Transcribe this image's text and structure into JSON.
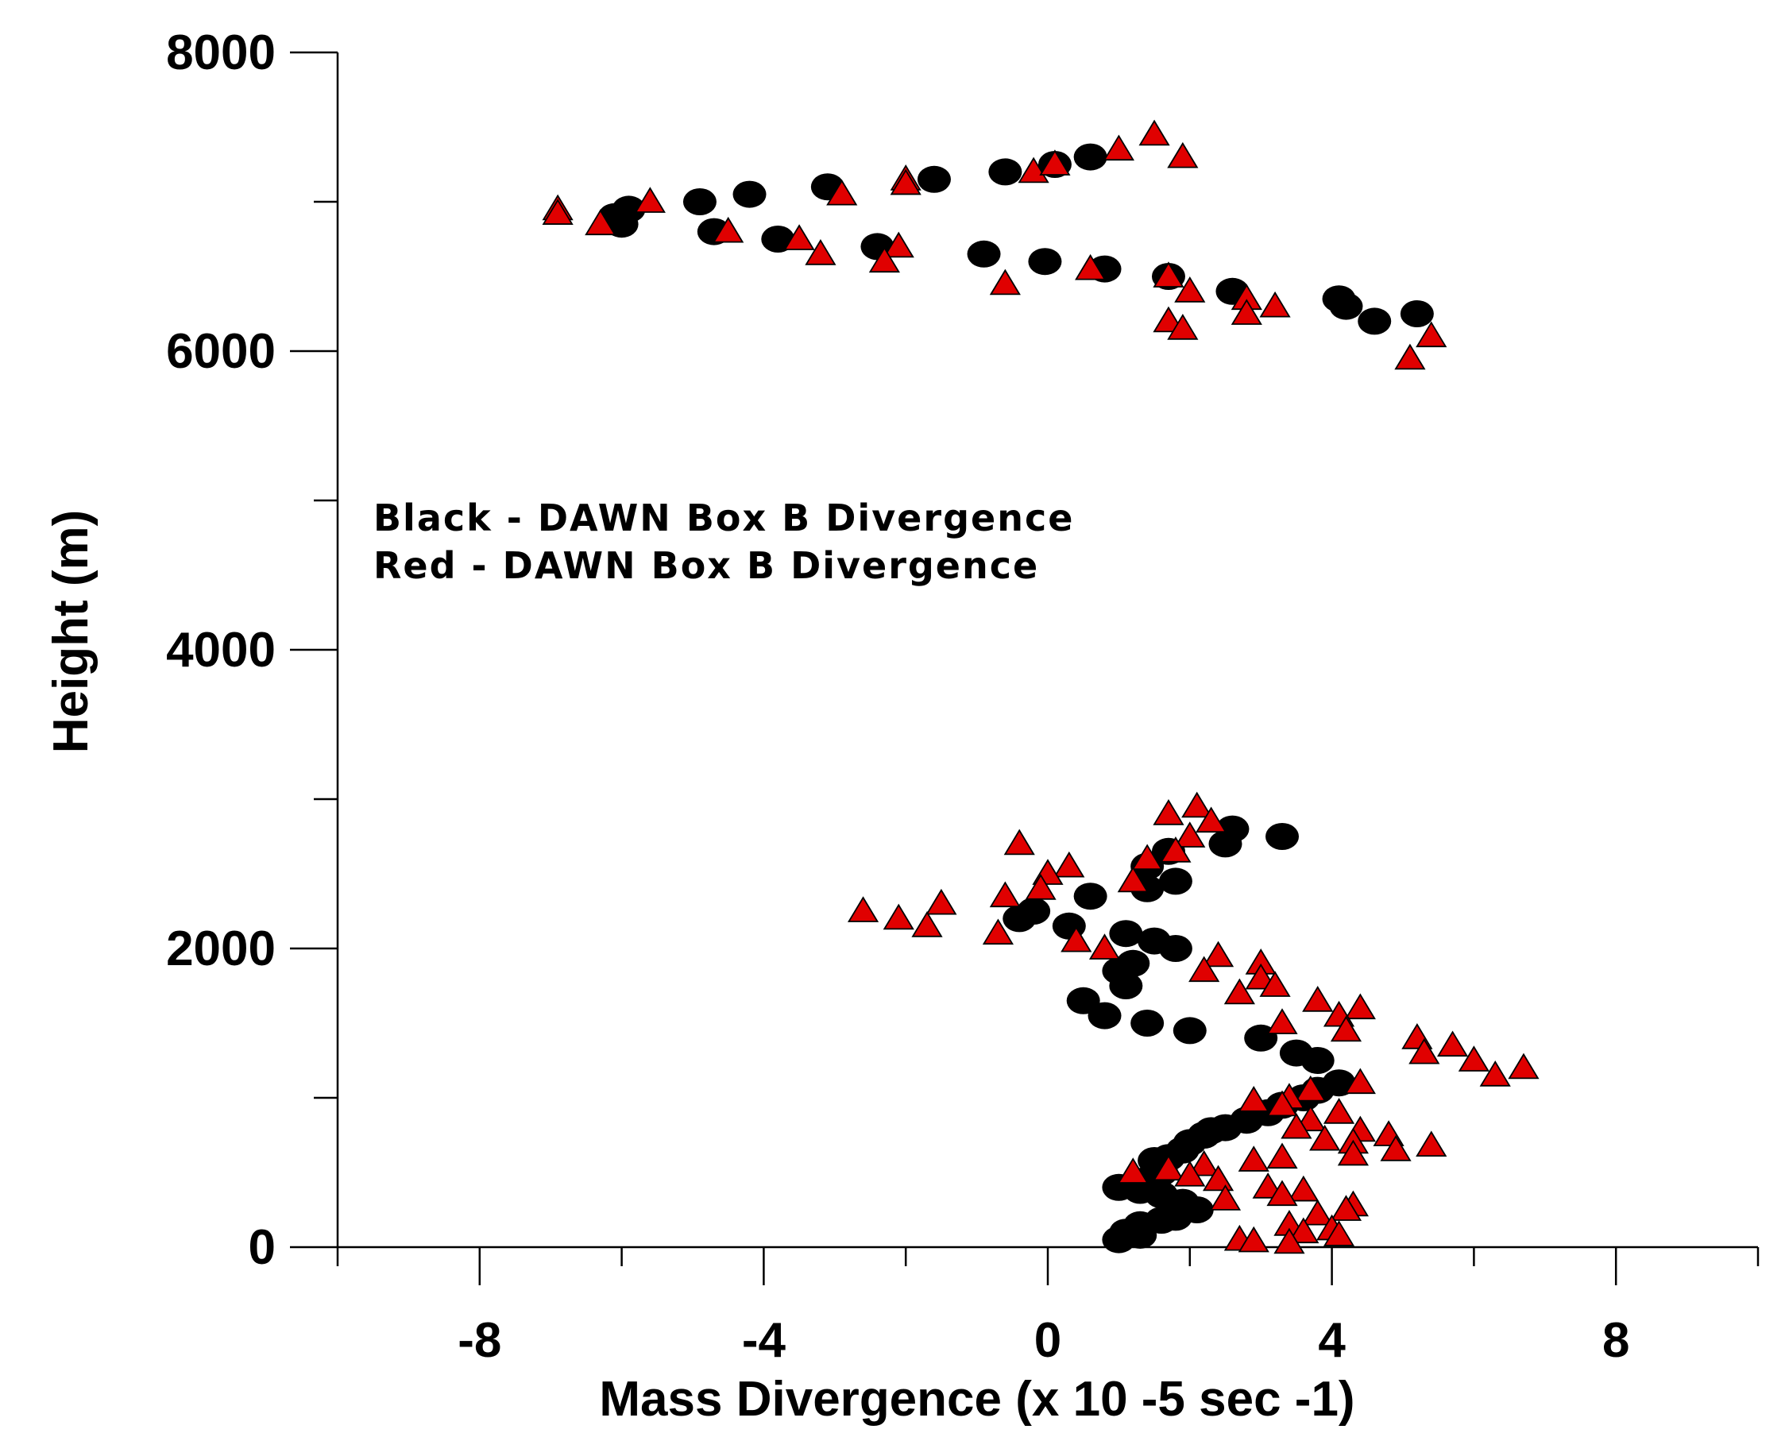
{
  "chart_data": {
    "type": "scatter",
    "xlabel": "Mass Divergence (x 10 -5 sec -1)",
    "ylabel": "Height (m)",
    "xlim": [
      -10,
      10
    ],
    "ylim": [
      0,
      8000
    ],
    "x_ticks_major": [
      -8,
      -4,
      0,
      4,
      8
    ],
    "x_ticks_minor": [
      -10,
      -6,
      -2,
      2,
      6,
      10
    ],
    "y_ticks_major": [
      0,
      2000,
      4000,
      6000,
      8000
    ],
    "y_ticks_minor": [
      1000,
      3000,
      5000,
      7000
    ],
    "grid": false,
    "legend_placement": "center-left",
    "series": [
      {
        "name": "Black - DAWN Box B Divergence",
        "color": "#000000",
        "marker": "circle",
        "points": [
          [
            -5.9,
            6950
          ],
          [
            -6.1,
            6900
          ],
          [
            -6.0,
            6850
          ],
          [
            -4.9,
            7000
          ],
          [
            -4.2,
            7050
          ],
          [
            -3.1,
            7100
          ],
          [
            -1.6,
            7150
          ],
          [
            -0.6,
            7200
          ],
          [
            0.1,
            7250
          ],
          [
            0.6,
            7300
          ],
          [
            -4.7,
            6800
          ],
          [
            -3.8,
            6750
          ],
          [
            -2.4,
            6700
          ],
          [
            -0.9,
            6650
          ],
          [
            -0.04,
            6600
          ],
          [
            0.8,
            6550
          ],
          [
            1.7,
            6500
          ],
          [
            2.6,
            6400
          ],
          [
            4.1,
            6350
          ],
          [
            4.2,
            6300
          ],
          [
            5.2,
            6250
          ],
          [
            4.6,
            6200
          ],
          [
            3.3,
            2750
          ],
          [
            2.6,
            2800
          ],
          [
            2.5,
            2700
          ],
          [
            1.7,
            2650
          ],
          [
            1.4,
            2550
          ],
          [
            1.8,
            2450
          ],
          [
            1.4,
            2400
          ],
          [
            0.6,
            2350
          ],
          [
            -0.2,
            2250
          ],
          [
            -0.4,
            2200
          ],
          [
            0.3,
            2150
          ],
          [
            1.1,
            2100
          ],
          [
            1.5,
            2050
          ],
          [
            1.8,
            2000
          ],
          [
            1.2,
            1900
          ],
          [
            1.0,
            1850
          ],
          [
            1.1,
            1750
          ],
          [
            0.5,
            1650
          ],
          [
            0.8,
            1550
          ],
          [
            1.4,
            1500
          ],
          [
            2.0,
            1450
          ],
          [
            3.0,
            1400
          ],
          [
            3.5,
            1300
          ],
          [
            3.8,
            1250
          ],
          [
            4.1,
            1100
          ],
          [
            3.8,
            1050
          ],
          [
            3.6,
            1000
          ],
          [
            3.3,
            950
          ],
          [
            3.1,
            900
          ],
          [
            2.8,
            850
          ],
          [
            2.5,
            800
          ],
          [
            2.3,
            780
          ],
          [
            2.2,
            750
          ],
          [
            2.0,
            700
          ],
          [
            1.9,
            650
          ],
          [
            1.7,
            600
          ],
          [
            1.5,
            580
          ],
          [
            1.6,
            500
          ],
          [
            1.4,
            450
          ],
          [
            1.0,
            400
          ],
          [
            1.3,
            380
          ],
          [
            1.6,
            350
          ],
          [
            1.9,
            300
          ],
          [
            2.1,
            250
          ],
          [
            1.8,
            200
          ],
          [
            1.6,
            180
          ],
          [
            1.3,
            150
          ],
          [
            1.1,
            100
          ],
          [
            1.3,
            80
          ],
          [
            1.0,
            50
          ]
        ]
      },
      {
        "name": "Red - DAWN Box B Divergence",
        "color": "#e00000",
        "marker": "triangle",
        "points": [
          [
            -6.9,
            6950
          ],
          [
            -6.9,
            6920
          ],
          [
            -5.6,
            7000
          ],
          [
            -6.3,
            6850
          ],
          [
            -4.5,
            6800
          ],
          [
            -3.5,
            6750
          ],
          [
            -3.2,
            6650
          ],
          [
            -2.9,
            7050
          ],
          [
            -2.0,
            7150
          ],
          [
            -2.0,
            7120
          ],
          [
            -2.1,
            6700
          ],
          [
            -2.3,
            6600
          ],
          [
            -0.2,
            7200
          ],
          [
            0.1,
            7250
          ],
          [
            1.0,
            7350
          ],
          [
            1.5,
            7450
          ],
          [
            1.9,
            7300
          ],
          [
            -0.6,
            6450
          ],
          [
            0.6,
            6550
          ],
          [
            1.7,
            6500
          ],
          [
            2.0,
            6400
          ],
          [
            2.8,
            6350
          ],
          [
            2.8,
            6250
          ],
          [
            3.2,
            6300
          ],
          [
            1.7,
            6200
          ],
          [
            1.9,
            6150
          ],
          [
            5.4,
            6100
          ],
          [
            5.1,
            5950
          ],
          [
            1.7,
            2900
          ],
          [
            2.1,
            2950
          ],
          [
            2.3,
            2850
          ],
          [
            2.0,
            2750
          ],
          [
            1.8,
            2650
          ],
          [
            1.4,
            2600
          ],
          [
            1.2,
            2450
          ],
          [
            -0.4,
            2700
          ],
          [
            0.3,
            2550
          ],
          [
            0.0,
            2500
          ],
          [
            -0.6,
            2350
          ],
          [
            -0.1,
            2400
          ],
          [
            -2.6,
            2250
          ],
          [
            -2.1,
            2200
          ],
          [
            -1.5,
            2300
          ],
          [
            -1.7,
            2150
          ],
          [
            -0.7,
            2100
          ],
          [
            0.4,
            2050
          ],
          [
            0.8,
            2000
          ],
          [
            2.4,
            1950
          ],
          [
            3.0,
            1900
          ],
          [
            2.2,
            1850
          ],
          [
            3.0,
            1800
          ],
          [
            3.2,
            1750
          ],
          [
            2.7,
            1700
          ],
          [
            3.8,
            1650
          ],
          [
            4.4,
            1600
          ],
          [
            4.1,
            1550
          ],
          [
            3.3,
            1500
          ],
          [
            4.2,
            1450
          ],
          [
            5.2,
            1400
          ],
          [
            5.7,
            1350
          ],
          [
            5.3,
            1300
          ],
          [
            6.0,
            1250
          ],
          [
            6.7,
            1200
          ],
          [
            6.3,
            1150
          ],
          [
            4.4,
            1100
          ],
          [
            3.7,
            1050
          ],
          [
            3.4,
            1000
          ],
          [
            2.9,
            980
          ],
          [
            3.3,
            950
          ],
          [
            4.1,
            900
          ],
          [
            3.7,
            850
          ],
          [
            3.5,
            800
          ],
          [
            4.4,
            780
          ],
          [
            4.8,
            750
          ],
          [
            3.9,
            720
          ],
          [
            4.3,
            700
          ],
          [
            5.4,
            680
          ],
          [
            4.9,
            650
          ],
          [
            4.3,
            620
          ],
          [
            3.3,
            600
          ],
          [
            2.9,
            580
          ],
          [
            2.2,
            550
          ],
          [
            1.7,
            520
          ],
          [
            1.2,
            500
          ],
          [
            2.0,
            480
          ],
          [
            2.4,
            450
          ],
          [
            3.1,
            400
          ],
          [
            3.6,
            380
          ],
          [
            3.3,
            350
          ],
          [
            2.5,
            320
          ],
          [
            4.3,
            280
          ],
          [
            4.2,
            250
          ],
          [
            3.8,
            220
          ],
          [
            3.4,
            150
          ],
          [
            4.0,
            120
          ],
          [
            3.6,
            100
          ],
          [
            4.1,
            80
          ],
          [
            2.7,
            50
          ],
          [
            2.9,
            40
          ],
          [
            3.4,
            30
          ]
        ]
      }
    ]
  }
}
